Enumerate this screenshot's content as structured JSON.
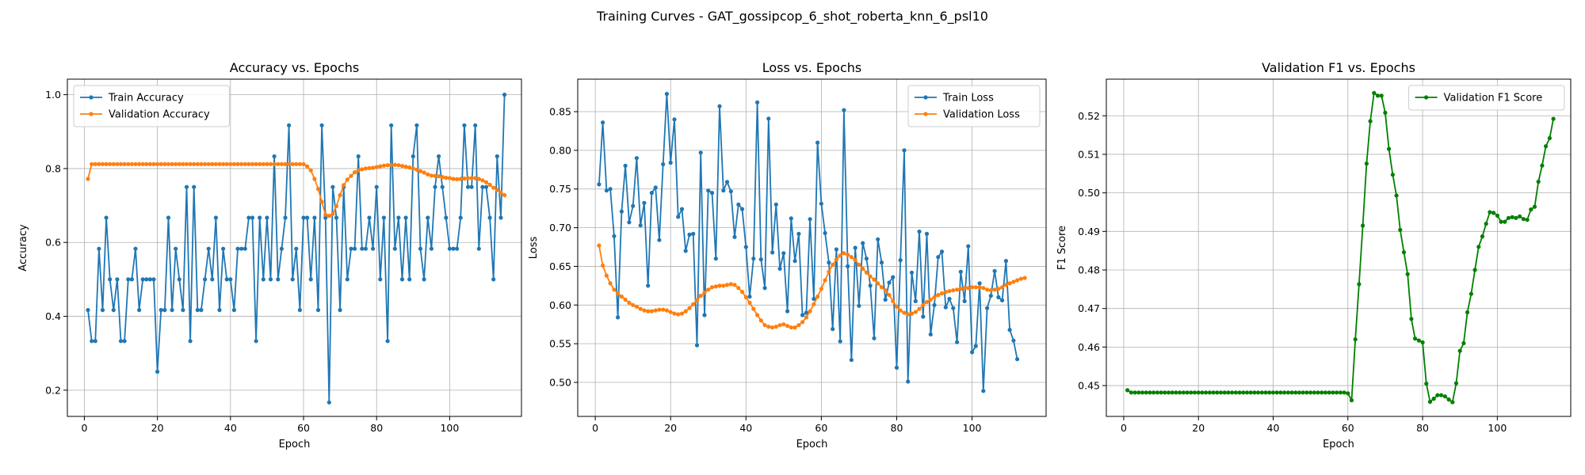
{
  "figure_title": "Training Curves - GAT_gossipcop_6_shot_roberta_knn_6_psl10",
  "colors": {
    "train": "#1f77b4",
    "val": "#ff7f0e",
    "f1": "#008000",
    "grid": "#b0b0b0"
  },
  "chart_data": [
    {
      "type": "line",
      "title": "Accuracy vs. Epochs",
      "xlabel": "Epoch",
      "ylabel": "Accuracy",
      "xlim": [
        -4.65,
        119.65
      ],
      "ylim": [
        0.129,
        1.042
      ],
      "xticks": [
        0,
        20,
        40,
        60,
        80,
        100
      ],
      "yticks": [
        0.2,
        0.4,
        0.6,
        0.8,
        1.0
      ],
      "ytick_labels": [
        "0.2",
        "0.4",
        "0.6",
        "0.8",
        "1.0"
      ],
      "grid": true,
      "legend_position": "upper left",
      "x_start": 1,
      "series": [
        {
          "name": "Train Accuracy",
          "color": "#1f77b4",
          "values": [
            0.417,
            0.333,
            0.333,
            0.583,
            0.417,
            0.667,
            0.5,
            0.417,
            0.5,
            0.333,
            0.333,
            0.5,
            0.5,
            0.583,
            0.417,
            0.5,
            0.5,
            0.5,
            0.5,
            0.25,
            0.417,
            0.417,
            0.667,
            0.417,
            0.583,
            0.5,
            0.417,
            0.75,
            0.333,
            0.75,
            0.417,
            0.417,
            0.5,
            0.583,
            0.5,
            0.667,
            0.417,
            0.583,
            0.5,
            0.5,
            0.417,
            0.583,
            0.583,
            0.583,
            0.667,
            0.667,
            0.333,
            0.667,
            0.5,
            0.667,
            0.5,
            0.833,
            0.5,
            0.583,
            0.667,
            0.917,
            0.5,
            0.583,
            0.417,
            0.667,
            0.667,
            0.5,
            0.667,
            0.417,
            0.917,
            0.667,
            0.167,
            0.75,
            0.667,
            0.417,
            0.75,
            0.5,
            0.583,
            0.583,
            0.833,
            0.583,
            0.583,
            0.667,
            0.583,
            0.75,
            0.5,
            0.667,
            0.333,
            0.917,
            0.583,
            0.667,
            0.5,
            0.667,
            0.5,
            0.833,
            0.917,
            0.583,
            0.5,
            0.667,
            0.583,
            0.75,
            0.833,
            0.75,
            0.667,
            0.583,
            0.583,
            0.583,
            0.667,
            0.917,
            0.75,
            0.75,
            0.917,
            0.583,
            0.75,
            0.75,
            0.667,
            0.5,
            0.833,
            0.667,
            1.0
          ]
        },
        {
          "name": "Validation Accuracy",
          "color": "#ff7f0e",
          "values": [
            0.772,
            0.812,
            0.812,
            0.812,
            0.812,
            0.812,
            0.812,
            0.812,
            0.812,
            0.812,
            0.812,
            0.812,
            0.812,
            0.812,
            0.812,
            0.812,
            0.812,
            0.812,
            0.812,
            0.812,
            0.812,
            0.812,
            0.812,
            0.812,
            0.812,
            0.812,
            0.812,
            0.812,
            0.812,
            0.812,
            0.812,
            0.812,
            0.812,
            0.812,
            0.812,
            0.812,
            0.812,
            0.812,
            0.812,
            0.812,
            0.812,
            0.812,
            0.812,
            0.812,
            0.812,
            0.812,
            0.812,
            0.812,
            0.812,
            0.812,
            0.812,
            0.812,
            0.812,
            0.812,
            0.812,
            0.812,
            0.812,
            0.812,
            0.812,
            0.812,
            0.806,
            0.795,
            0.772,
            0.745,
            0.71,
            0.675,
            0.672,
            0.677,
            0.698,
            0.728,
            0.755,
            0.77,
            0.78,
            0.79,
            0.795,
            0.798,
            0.8,
            0.801,
            0.802,
            0.804,
            0.806,
            0.808,
            0.809,
            0.81,
            0.81,
            0.809,
            0.807,
            0.805,
            0.803,
            0.8,
            0.797,
            0.793,
            0.789,
            0.784,
            0.781,
            0.78,
            0.779,
            0.777,
            0.775,
            0.774,
            0.772,
            0.771,
            0.772,
            0.773,
            0.774,
            0.774,
            0.774,
            0.772,
            0.768,
            0.763,
            0.756,
            0.748,
            0.742,
            0.735,
            0.728
          ]
        }
      ]
    },
    {
      "type": "line",
      "title": "Loss vs. Epochs",
      "xlabel": "Epoch",
      "ylabel": "Loss",
      "xlim": [
        -4.65,
        119.65
      ],
      "ylim": [
        0.456,
        0.892
      ],
      "xticks": [
        0,
        20,
        40,
        60,
        80,
        100
      ],
      "yticks": [
        0.5,
        0.55,
        0.6,
        0.65,
        0.7,
        0.75,
        0.8,
        0.85
      ],
      "ytick_labels": [
        "0.50",
        "0.55",
        "0.60",
        "0.65",
        "0.70",
        "0.75",
        "0.80",
        "0.85"
      ],
      "grid": true,
      "legend_position": "upper right",
      "x_start": 1,
      "series": [
        {
          "name": "Train Loss",
          "color": "#1f77b4",
          "values": [
            0.756,
            0.836,
            0.748,
            0.75,
            0.689,
            0.584,
            0.721,
            0.78,
            0.707,
            0.728,
            0.79,
            0.703,
            0.732,
            0.625,
            0.745,
            0.752,
            0.684,
            0.782,
            0.873,
            0.784,
            0.84,
            0.714,
            0.724,
            0.67,
            0.691,
            0.692,
            0.548,
            0.797,
            0.587,
            0.748,
            0.745,
            0.66,
            0.857,
            0.748,
            0.759,
            0.747,
            0.688,
            0.73,
            0.724,
            0.675,
            0.611,
            0.66,
            0.862,
            0.659,
            0.622,
            0.841,
            0.668,
            0.73,
            0.647,
            0.667,
            0.592,
            0.712,
            0.657,
            0.692,
            0.587,
            0.59,
            0.711,
            0.608,
            0.81,
            0.731,
            0.693,
            0.655,
            0.569,
            0.672,
            0.553,
            0.852,
            0.65,
            0.529,
            0.674,
            0.599,
            0.68,
            0.66,
            0.625,
            0.557,
            0.685,
            0.655,
            0.607,
            0.629,
            0.636,
            0.519,
            0.658,
            0.8,
            0.501,
            0.642,
            0.605,
            0.695,
            0.585,
            0.692,
            0.562,
            0.6,
            0.662,
            0.669,
            0.597,
            0.608,
            0.596,
            0.552,
            0.643,
            0.605,
            0.676,
            0.539,
            0.547,
            0.628,
            0.489,
            0.596,
            0.612,
            0.644,
            0.61,
            0.606,
            0.657,
            0.568,
            0.554,
            0.53
          ]
        },
        {
          "name": "Validation Loss",
          "color": "#ff7f0e",
          "values": [
            0.677,
            0.651,
            0.638,
            0.628,
            0.62,
            0.615,
            0.611,
            0.607,
            0.603,
            0.6,
            0.598,
            0.595,
            0.593,
            0.592,
            0.592,
            0.593,
            0.594,
            0.594,
            0.593,
            0.591,
            0.589,
            0.588,
            0.589,
            0.592,
            0.596,
            0.601,
            0.606,
            0.612,
            0.616,
            0.62,
            0.623,
            0.624,
            0.625,
            0.625,
            0.626,
            0.627,
            0.626,
            0.622,
            0.617,
            0.61,
            0.603,
            0.595,
            0.587,
            0.58,
            0.574,
            0.572,
            0.571,
            0.572,
            0.574,
            0.575,
            0.573,
            0.571,
            0.571,
            0.574,
            0.578,
            0.584,
            0.592,
            0.601,
            0.611,
            0.621,
            0.632,
            0.643,
            0.652,
            0.659,
            0.664,
            0.667,
            0.665,
            0.662,
            0.658,
            0.652,
            0.647,
            0.642,
            0.637,
            0.633,
            0.628,
            0.623,
            0.619,
            0.613,
            0.605,
            0.598,
            0.593,
            0.59,
            0.588,
            0.589,
            0.591,
            0.595,
            0.6,
            0.604,
            0.607,
            0.61,
            0.613,
            0.615,
            0.617,
            0.618,
            0.619,
            0.62,
            0.621,
            0.622,
            0.622,
            0.623,
            0.623,
            0.623,
            0.622,
            0.62,
            0.619,
            0.62,
            0.621,
            0.623,
            0.626,
            0.628,
            0.63,
            0.632,
            0.634,
            0.635
          ]
        }
      ]
    },
    {
      "type": "line",
      "title": "Validation F1 vs. Epochs",
      "xlabel": "Epoch",
      "ylabel": "F1 Score",
      "xlim": [
        -4.65,
        119.65
      ],
      "ylim": [
        0.442,
        0.5295
      ],
      "xticks": [
        0,
        20,
        40,
        60,
        80,
        100
      ],
      "yticks": [
        0.45,
        0.46,
        0.47,
        0.48,
        0.49,
        0.5,
        0.51,
        0.52
      ],
      "ytick_labels": [
        "0.45",
        "0.46",
        "0.47",
        "0.48",
        "0.49",
        "0.50",
        "0.51",
        "0.52"
      ],
      "grid": true,
      "legend_position": "upper right",
      "x_start": 1,
      "series": [
        {
          "name": "Validation F1 Score",
          "color": "#008000",
          "values": [
            0.4488,
            0.4482,
            0.4482,
            0.4482,
            0.4482,
            0.4482,
            0.4482,
            0.4482,
            0.4482,
            0.4482,
            0.4482,
            0.4482,
            0.4482,
            0.4482,
            0.4482,
            0.4482,
            0.4482,
            0.4482,
            0.4482,
            0.4482,
            0.4482,
            0.4482,
            0.4482,
            0.4482,
            0.4482,
            0.4482,
            0.4482,
            0.4482,
            0.4482,
            0.4482,
            0.4482,
            0.4482,
            0.4482,
            0.4482,
            0.4482,
            0.4482,
            0.4482,
            0.4482,
            0.4482,
            0.4482,
            0.4482,
            0.4482,
            0.4482,
            0.4482,
            0.4482,
            0.4482,
            0.4482,
            0.4482,
            0.4482,
            0.4482,
            0.4482,
            0.4482,
            0.4482,
            0.4482,
            0.4482,
            0.4482,
            0.4482,
            0.4482,
            0.4482,
            0.448,
            0.4462,
            0.462,
            0.4763,
            0.4915,
            0.5076,
            0.5186,
            0.5259,
            0.5252,
            0.5252,
            0.5208,
            0.5114,
            0.5047,
            0.4993,
            0.4904,
            0.4846,
            0.4789,
            0.4673,
            0.4622,
            0.4617,
            0.4612,
            0.4505,
            0.4458,
            0.4466,
            0.4475,
            0.4475,
            0.4472,
            0.4464,
            0.4457,
            0.4506,
            0.459,
            0.461,
            0.469,
            0.4738,
            0.48,
            0.486,
            0.4887,
            0.492,
            0.495,
            0.4948,
            0.4941,
            0.4925,
            0.4925,
            0.4935,
            0.4937,
            0.4935,
            0.4939,
            0.4932,
            0.493,
            0.4957,
            0.4964,
            0.5029,
            0.5071,
            0.5121,
            0.5142,
            0.5192
          ]
        }
      ]
    }
  ]
}
